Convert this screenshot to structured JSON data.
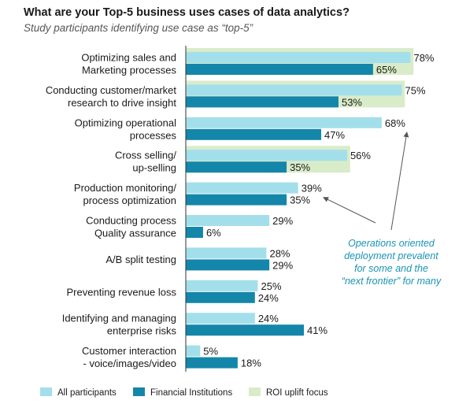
{
  "title": "What are your Top-5 business uses cases of data analytics?",
  "subtitle": "Study participants identifying use case as “top-5”",
  "colors": {
    "all_participants": "#a3dfeb",
    "financial_institutions": "#1486a9",
    "roi_uplift": "#d9ecca",
    "annotation": "#1a93b5",
    "axis": "#333333"
  },
  "chart_data": {
    "type": "bar",
    "orientation": "horizontal",
    "categories": [
      [
        "Optimizing sales and",
        "Marketing processes"
      ],
      [
        "Conducting customer/market",
        "research to drive insight"
      ],
      [
        "Optimizing operational",
        "processes"
      ],
      [
        "Cross selling/",
        "up-selling"
      ],
      [
        "Production monitoring/",
        "process optimization"
      ],
      [
        "Conducting process",
        "Quality assurance"
      ],
      [
        "A/B split testing"
      ],
      [
        "Preventing revenue loss"
      ],
      [
        "Identifying and managing",
        "enterprise risks"
      ],
      [
        "Customer interaction",
        "- voice/images/video"
      ]
    ],
    "series": [
      {
        "name": "All participants",
        "values": [
          78,
          75,
          68,
          56,
          39,
          29,
          28,
          25,
          24,
          5
        ]
      },
      {
        "name": "Financial Institutions",
        "values": [
          65,
          53,
          47,
          35,
          35,
          6,
          29,
          24,
          41,
          18
        ]
      }
    ],
    "highlight": {
      "name": "ROI uplift focus",
      "categories": [
        0,
        1,
        3
      ]
    },
    "value_suffix": "%",
    "xlim": [
      0,
      100
    ],
    "grid": false,
    "legend": "bottom",
    "annotation": {
      "lines": [
        "Operations oriented",
        "deployment prevalent",
        "for some and the",
        "“next frontier” for many"
      ],
      "arrows_to": [
        2,
        4
      ]
    }
  }
}
